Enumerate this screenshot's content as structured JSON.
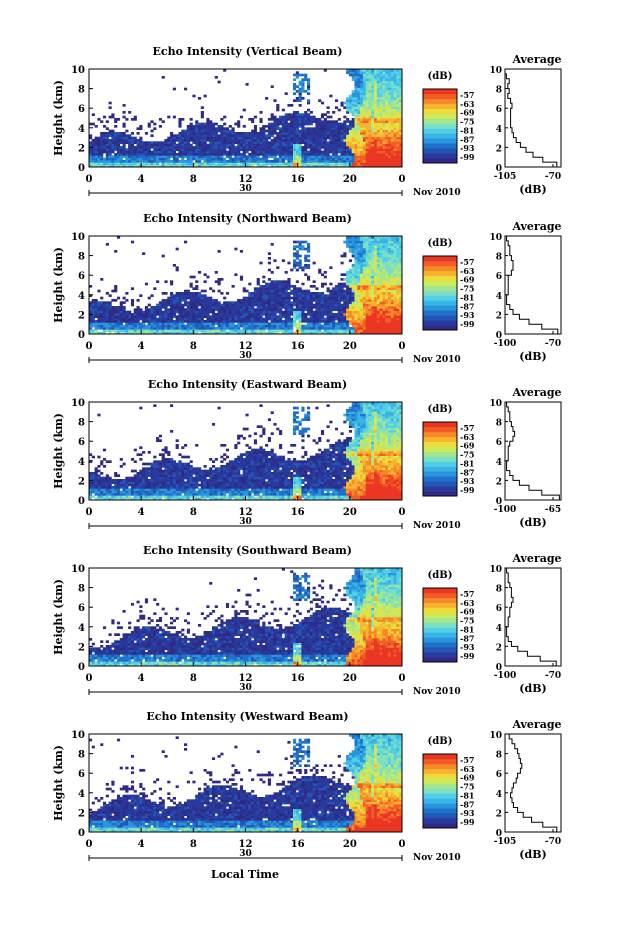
{
  "figure": {
    "date_label": "Nov 2010",
    "day_label": "30",
    "xlabel": "Local Time",
    "ylabel": "Height (km)",
    "cbar_unit": "(dB)",
    "avg_title": "Average",
    "avg_unit": "(dB)",
    "x_ticks": [
      "0",
      "4",
      "8",
      "12",
      "16",
      "20",
      "0"
    ],
    "y_ticks": [
      "0",
      "2",
      "4",
      "6",
      "8",
      "10"
    ],
    "cbar_ticks": [
      "-57",
      "-63",
      "-69",
      "-75",
      "-81",
      "-87",
      "-93",
      "-99"
    ],
    "colors": [
      "#2e2a86",
      "#283a9c",
      "#2454b4",
      "#1e72cc",
      "#2a94dc",
      "#3ab4e6",
      "#52cfe8",
      "#7adfc4",
      "#a4e68e",
      "#ccea5c",
      "#ecdc3a",
      "#f7b52e",
      "#f7892a",
      "#f25c26",
      "#ea3622"
    ]
  },
  "chart_data": [
    {
      "type": "heatmap",
      "title": "Echo Intensity (Vertical Beam)",
      "xlabel": "Local Time",
      "ylabel": "Height (km)",
      "xlim": [
        0,
        24
      ],
      "ylim": [
        0,
        10
      ],
      "colorbar": {
        "unit": "(dB)",
        "ticks": [
          -57,
          -63,
          -69,
          -75,
          -81,
          -87,
          -93,
          -99
        ]
      },
      "average": {
        "title": "Average",
        "unit": "(dB)",
        "xlim": [
          -105,
          -65
        ],
        "xticks": [
          "-105",
          "-70"
        ],
        "heights": [
          0,
          0.5,
          1,
          1.5,
          2,
          2.5,
          3,
          3.5,
          4,
          4.5,
          5,
          5.5,
          6,
          6.5,
          7,
          7.5,
          8,
          8.5,
          9,
          9.5
        ],
        "values": [
          -68,
          -78,
          -85,
          -90,
          -94,
          -97,
          -99,
          -100,
          -101,
          -101,
          -101,
          -101,
          -100,
          -101,
          -103,
          -102,
          -103,
          -102,
          -104,
          -105
        ]
      }
    },
    {
      "type": "heatmap",
      "title": "Echo Intensity (Northward Beam)",
      "xlabel": "Local Time",
      "ylabel": "Height (km)",
      "xlim": [
        0,
        24
      ],
      "ylim": [
        0,
        10
      ],
      "colorbar": {
        "unit": "(dB)",
        "ticks": [
          -57,
          -63,
          -69,
          -75,
          -81,
          -87,
          -93,
          -99
        ]
      },
      "average": {
        "title": "Average",
        "unit": "(dB)",
        "xlim": [
          -100,
          -65
        ],
        "xticks": [
          "-100",
          "-70"
        ],
        "heights": [
          0,
          0.5,
          1,
          1.5,
          2,
          2.5,
          3,
          3.5,
          4,
          4.5,
          5,
          5.5,
          6,
          6.5,
          7,
          7.5,
          8,
          8.5,
          9,
          9.5
        ],
        "values": [
          -67,
          -77,
          -85,
          -91,
          -95,
          -97,
          -99,
          -99,
          -98,
          -98,
          -98,
          -98,
          -96,
          -95,
          -95,
          -96,
          -97,
          -97,
          -98,
          -99
        ]
      }
    },
    {
      "type": "heatmap",
      "title": "Echo Intensity (Eastward Beam)",
      "xlabel": "Local Time",
      "ylabel": "Height (km)",
      "xlim": [
        0,
        24
      ],
      "ylim": [
        0,
        10
      ],
      "colorbar": {
        "unit": "(dB)",
        "ticks": [
          -57,
          -63,
          -69,
          -75,
          -81,
          -87,
          -93,
          -99
        ]
      },
      "average": {
        "title": "Average",
        "unit": "(dB)",
        "xlim": [
          -100,
          -65
        ],
        "xticks": [
          "-100",
          "-65"
        ],
        "heights": [
          0,
          0.5,
          1,
          1.5,
          2,
          2.5,
          3,
          3.5,
          4,
          4.5,
          5,
          5.5,
          6,
          6.5,
          7,
          7.5,
          8,
          8.5,
          9,
          9.5
        ],
        "values": [
          -66,
          -77,
          -85,
          -91,
          -95,
          -97,
          -99,
          -99,
          -98,
          -98,
          -98,
          -97,
          -95,
          -94,
          -95,
          -96,
          -97,
          -97,
          -98,
          -99
        ]
      }
    },
    {
      "type": "heatmap",
      "title": "Echo Intensity (Southward Beam)",
      "xlabel": "Local Time",
      "ylabel": "Height (km)",
      "xlim": [
        0,
        24
      ],
      "ylim": [
        0,
        10
      ],
      "colorbar": {
        "unit": "(dB)",
        "ticks": [
          -57,
          -63,
          -69,
          -75,
          -81,
          -87,
          -93,
          -99
        ]
      },
      "average": {
        "title": "Average",
        "unit": "(dB)",
        "xlim": [
          -100,
          -65
        ],
        "xticks": [
          "-100",
          "-70"
        ],
        "heights": [
          0,
          0.5,
          1,
          1.5,
          2,
          2.5,
          3,
          3.5,
          4,
          4.5,
          5,
          5.5,
          6,
          6.5,
          7,
          7.5,
          8,
          8.5,
          9,
          9.5
        ],
        "values": [
          -68,
          -78,
          -86,
          -92,
          -96,
          -98,
          -99,
          -99,
          -98,
          -98,
          -97,
          -97,
          -96,
          -95,
          -96,
          -96,
          -97,
          -98,
          -98,
          -99
        ]
      }
    },
    {
      "type": "heatmap",
      "title": "Echo Intensity (Westward Beam)",
      "xlabel": "Local Time",
      "ylabel": "Height (km)",
      "xlim": [
        0,
        24
      ],
      "ylim": [
        0,
        10
      ],
      "colorbar": {
        "unit": "(dB)",
        "ticks": [
          -57,
          -63,
          -69,
          -75,
          -81,
          -87,
          -93,
          -99
        ]
      },
      "average": {
        "title": "Average",
        "unit": "(dB)",
        "xlim": [
          -105,
          -65
        ],
        "xticks": [
          "-105",
          "-70"
        ],
        "heights": [
          0,
          0.5,
          1,
          1.5,
          2,
          2.5,
          3,
          3.5,
          4,
          4.5,
          5,
          5.5,
          6,
          6.5,
          7,
          7.5,
          8,
          8.5,
          9,
          9.5
        ],
        "values": [
          -68,
          -78,
          -86,
          -92,
          -96,
          -99,
          -100,
          -101,
          -100,
          -99,
          -97,
          -96,
          -94,
          -93,
          -94,
          -95,
          -96,
          -98,
          -100,
          -102
        ]
      }
    }
  ]
}
